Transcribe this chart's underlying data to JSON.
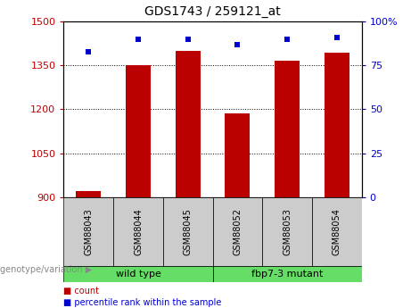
{
  "title": "GDS1743 / 259121_at",
  "samples": [
    "GSM88043",
    "GSM88044",
    "GSM88045",
    "GSM88052",
    "GSM88053",
    "GSM88054"
  ],
  "counts": [
    920,
    1350,
    1400,
    1185,
    1365,
    1395
  ],
  "percentiles": [
    83,
    90,
    90,
    87,
    90,
    91
  ],
  "groups": [
    {
      "label": "wild type",
      "indices": [
        0,
        1,
        2
      ]
    },
    {
      "label": "fbp7-3 mutant",
      "indices": [
        3,
        4,
        5
      ]
    }
  ],
  "ylim_left": [
    900,
    1500
  ],
  "ylim_right": [
    0,
    100
  ],
  "yticks_left": [
    900,
    1050,
    1200,
    1350,
    1500
  ],
  "yticks_right": [
    0,
    25,
    50,
    75,
    100
  ],
  "bar_color": "#bb0000",
  "dot_color": "#0000cc",
  "bar_width": 0.5,
  "background_color": "#ffffff",
  "plot_bg_color": "#ffffff",
  "group_bg_color": "#66dd66",
  "sample_bg_color": "#cccccc",
  "legend_count_label": "count",
  "legend_pct_label": "percentile rank within the sample",
  "genotype_label": "genotype/variation"
}
